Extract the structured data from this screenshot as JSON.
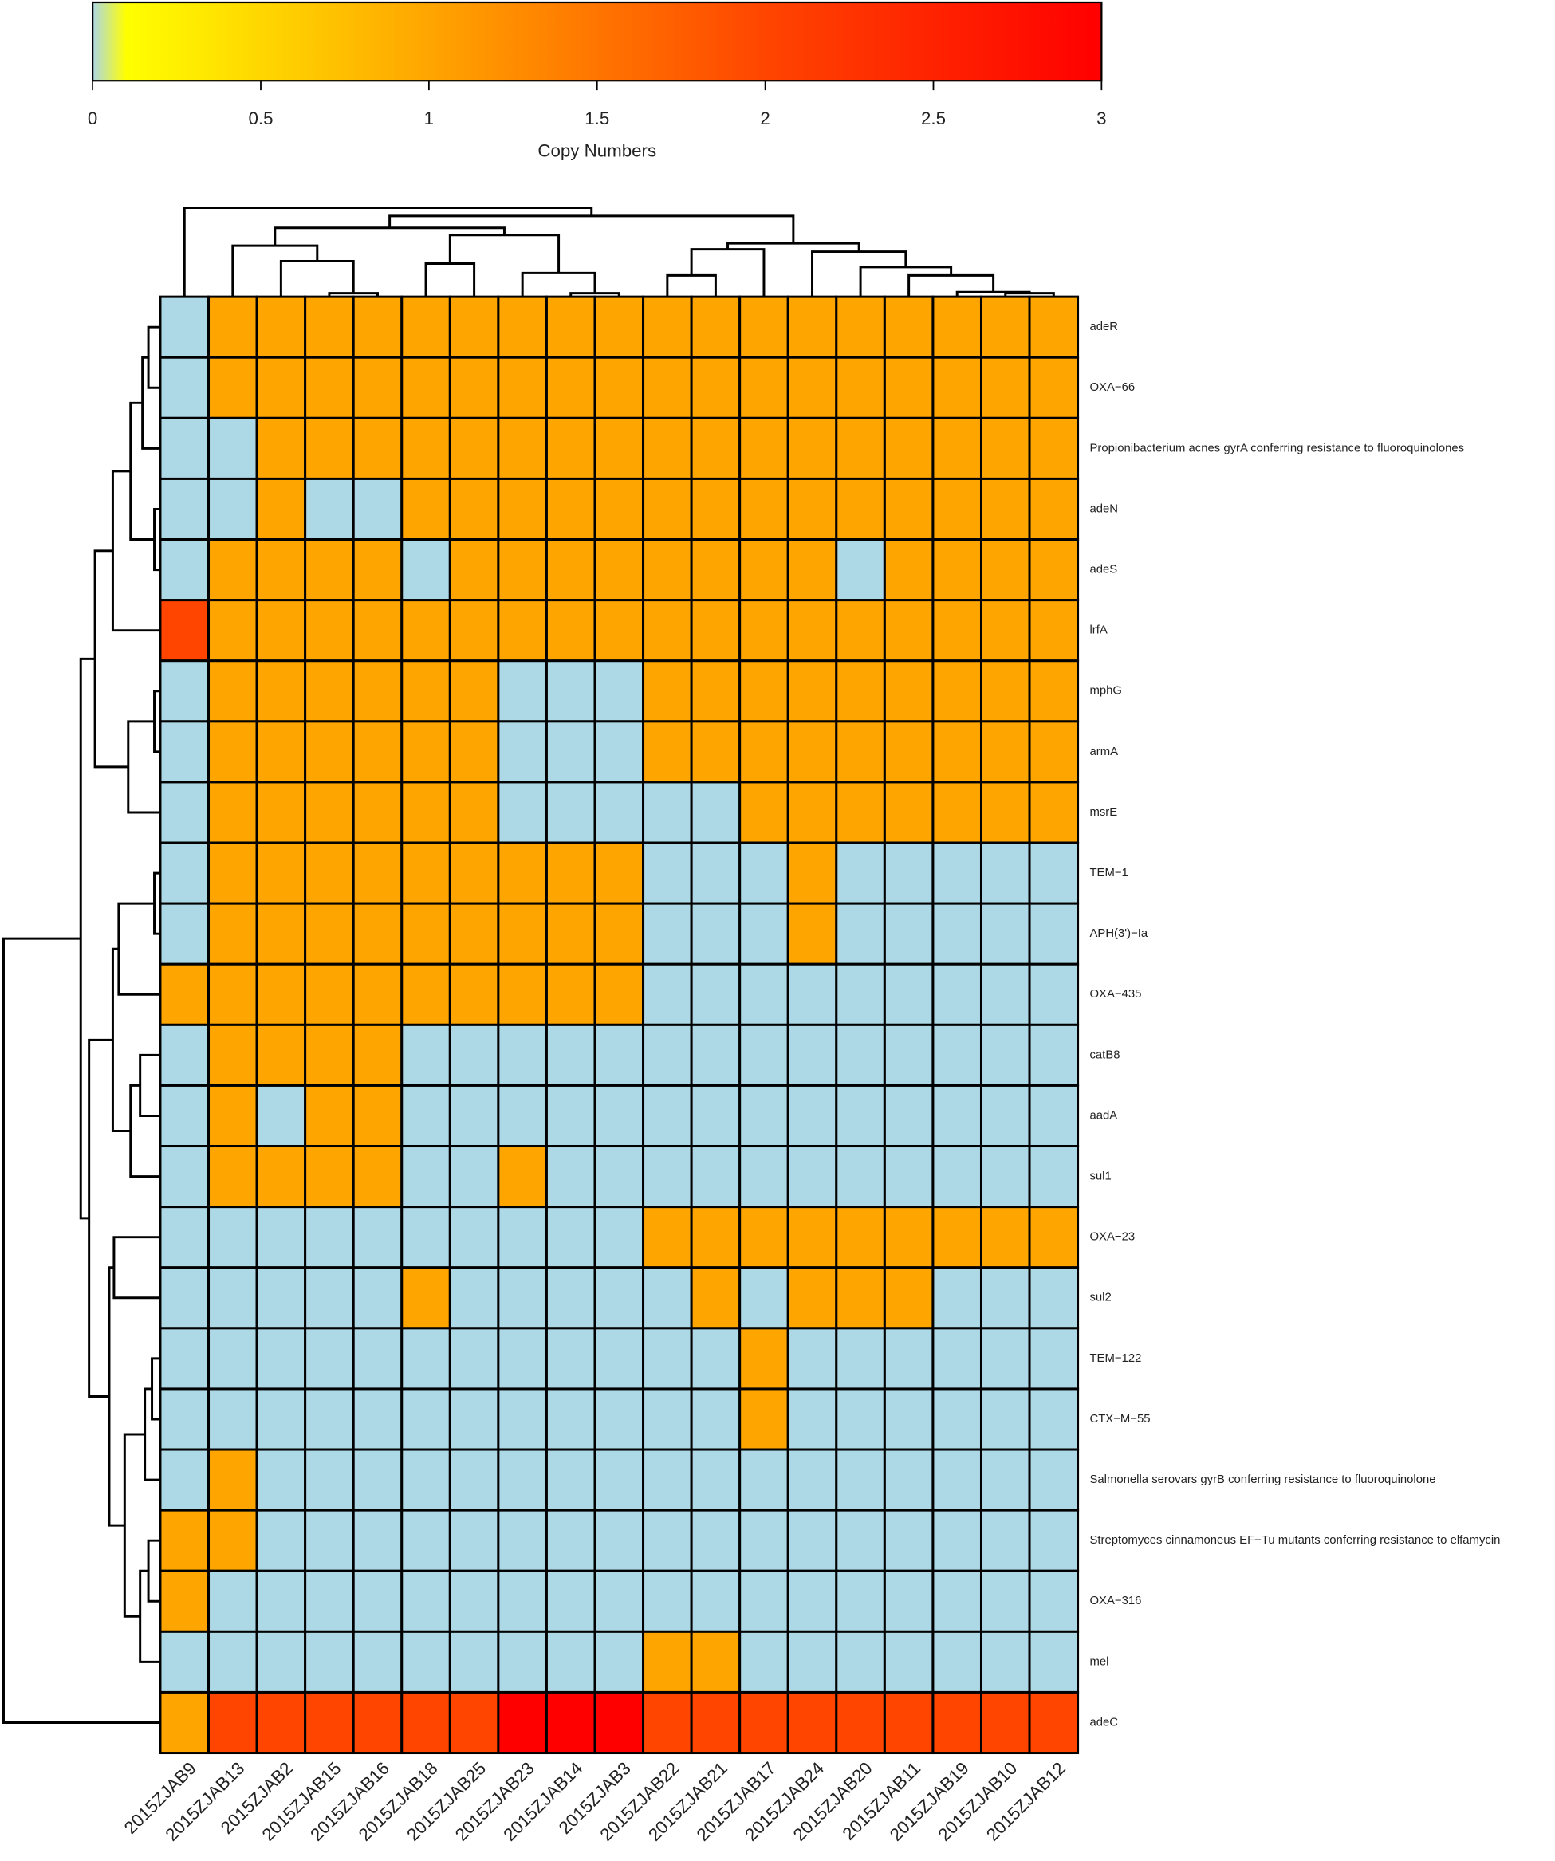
{
  "chart_data": {
    "type": "heatmap",
    "colorbar_label": "Copy Numbers",
    "clim": [
      0,
      3
    ],
    "cticks": [
      0,
      0.5,
      1,
      1.5,
      2,
      2.5,
      3
    ],
    "colorscale": [
      [
        0,
        "#add8e6"
      ],
      [
        0.1,
        "#ffff00"
      ],
      [
        1,
        "#ffa500"
      ],
      [
        2,
        "#ff4500"
      ],
      [
        3,
        "#ff0000"
      ]
    ],
    "columns": [
      "2015ZJAB9",
      "2015ZJAB13",
      "2015ZJAB2",
      "2015ZJAB15",
      "2015ZJAB16",
      "2015ZJAB18",
      "2015ZJAB25",
      "2015ZJAB23",
      "2015ZJAB14",
      "2015ZJAB3",
      "2015ZJAB22",
      "2015ZJAB21",
      "2015ZJAB17",
      "2015ZJAB24",
      "2015ZJAB20",
      "2015ZJAB11",
      "2015ZJAB19",
      "2015ZJAB10",
      "2015ZJAB12"
    ],
    "rows": [
      "adeR",
      "OXA−66",
      "Propionibacterium acnes gyrA conferring resistance to fluoroquinolones",
      "adeN",
      "adeS",
      "lrfA",
      "mphG",
      "armA",
      "msrE",
      "TEM−1",
      "APH(3')−Ia",
      "OXA−435",
      "catB8",
      "aadA",
      "sul1",
      "OXA−23",
      "sul2",
      "TEM−122",
      "CTX−M−55",
      "Salmonella serovars gyrB conferring resistance to fluoroquinolone",
      "Streptomyces cinnamoneus EF−Tu mutants conferring resistance to elfamycin",
      "OXA−316",
      "mel",
      "adeC"
    ],
    "values": [
      [
        0,
        1,
        1,
        1,
        1,
        1,
        1,
        1,
        1,
        1,
        1,
        1,
        1,
        1,
        1,
        1,
        1,
        1,
        1
      ],
      [
        0,
        1,
        1,
        1,
        1,
        1,
        1,
        1,
        1,
        1,
        1,
        1,
        1,
        1,
        1,
        1,
        1,
        1,
        1
      ],
      [
        0,
        0,
        1,
        1,
        1,
        1,
        1,
        1,
        1,
        1,
        1,
        1,
        1,
        1,
        1,
        1,
        1,
        1,
        1
      ],
      [
        0,
        0,
        1,
        0,
        0,
        1,
        1,
        1,
        1,
        1,
        1,
        1,
        1,
        1,
        1,
        1,
        1,
        1,
        1
      ],
      [
        0,
        1,
        1,
        1,
        1,
        0,
        1,
        1,
        1,
        1,
        1,
        1,
        1,
        1,
        0,
        1,
        1,
        1,
        1
      ],
      [
        2,
        1,
        1,
        1,
        1,
        1,
        1,
        1,
        1,
        1,
        1,
        1,
        1,
        1,
        1,
        1,
        1,
        1,
        1
      ],
      [
        0,
        1,
        1,
        1,
        1,
        1,
        1,
        0,
        0,
        0,
        1,
        1,
        1,
        1,
        1,
        1,
        1,
        1,
        1
      ],
      [
        0,
        1,
        1,
        1,
        1,
        1,
        1,
        0,
        0,
        0,
        1,
        1,
        1,
        1,
        1,
        1,
        1,
        1,
        1
      ],
      [
        0,
        1,
        1,
        1,
        1,
        1,
        1,
        0,
        0,
        0,
        0,
        0,
        1,
        1,
        1,
        1,
        1,
        1,
        1
      ],
      [
        0,
        1,
        1,
        1,
        1,
        1,
        1,
        1,
        1,
        1,
        0,
        0,
        0,
        1,
        0,
        0,
        0,
        0,
        0
      ],
      [
        0,
        1,
        1,
        1,
        1,
        1,
        1,
        1,
        1,
        1,
        0,
        0,
        0,
        1,
        0,
        0,
        0,
        0,
        0
      ],
      [
        1,
        1,
        1,
        1,
        1,
        1,
        1,
        1,
        1,
        1,
        0,
        0,
        0,
        0,
        0,
        0,
        0,
        0,
        0
      ],
      [
        0,
        1,
        1,
        1,
        1,
        0,
        0,
        0,
        0,
        0,
        0,
        0,
        0,
        0,
        0,
        0,
        0,
        0,
        0
      ],
      [
        0,
        1,
        0,
        1,
        1,
        0,
        0,
        0,
        0,
        0,
        0,
        0,
        0,
        0,
        0,
        0,
        0,
        0,
        0
      ],
      [
        0,
        1,
        1,
        1,
        1,
        0,
        0,
        1,
        0,
        0,
        0,
        0,
        0,
        0,
        0,
        0,
        0,
        0,
        0
      ],
      [
        0,
        0,
        0,
        0,
        0,
        0,
        0,
        0,
        0,
        0,
        1,
        1,
        1,
        1,
        1,
        1,
        1,
        1,
        1
      ],
      [
        0,
        0,
        0,
        0,
        0,
        1,
        0,
        0,
        0,
        0,
        0,
        1,
        0,
        1,
        1,
        1,
        0,
        0,
        0
      ],
      [
        0,
        0,
        0,
        0,
        0,
        0,
        0,
        0,
        0,
        0,
        0,
        0,
        1,
        0,
        0,
        0,
        0,
        0,
        0
      ],
      [
        0,
        0,
        0,
        0,
        0,
        0,
        0,
        0,
        0,
        0,
        0,
        0,
        1,
        0,
        0,
        0,
        0,
        0,
        0
      ],
      [
        0,
        1,
        0,
        0,
        0,
        0,
        0,
        0,
        0,
        0,
        0,
        0,
        0,
        0,
        0,
        0,
        0,
        0,
        0
      ],
      [
        1,
        1,
        0,
        0,
        0,
        0,
        0,
        0,
        0,
        0,
        0,
        0,
        0,
        0,
        0,
        0,
        0,
        0,
        0
      ],
      [
        1,
        0,
        0,
        0,
        0,
        0,
        0,
        0,
        0,
        0,
        0,
        0,
        0,
        0,
        0,
        0,
        0,
        0,
        0
      ],
      [
        0,
        0,
        0,
        0,
        0,
        0,
        0,
        0,
        0,
        0,
        1,
        1,
        0,
        0,
        0,
        0,
        0,
        0,
        0
      ],
      [
        1,
        2,
        2,
        2,
        2,
        2,
        2,
        3,
        3,
        3,
        2,
        2,
        2,
        2,
        2,
        2,
        2,
        2,
        2
      ]
    ]
  }
}
